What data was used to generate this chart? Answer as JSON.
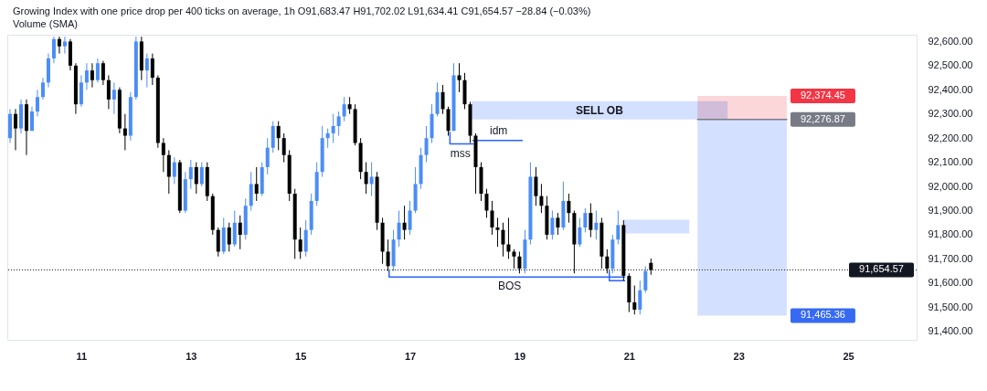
{
  "chart_data": {
    "type": "candlestick",
    "title": "Growing Index with one price drop per 400 ticks on average, 1h O91,683.47 H91,702.02 L91,634.41 C91,654.57 −28.84 (−0.03%)",
    "subtitle": "Volume (SMA)",
    "x": [
      9.7,
      9.8,
      9.9,
      10,
      10.1,
      10.2,
      10.3,
      10.4,
      10.5,
      10.6,
      10.7,
      10.8,
      10.9,
      11,
      11.1,
      11.2,
      11.3,
      11.4,
      11.5,
      11.6,
      11.7,
      11.8,
      11.9,
      12,
      12.1,
      12.2,
      12.3,
      12.4,
      12.5,
      12.6,
      12.7,
      12.8,
      12.9,
      13,
      13.1,
      13.2,
      13.3,
      13.4,
      13.5,
      13.6,
      13.7,
      13.8,
      13.9,
      14,
      14.1,
      14.2,
      14.3,
      14.4,
      14.5,
      14.6,
      14.7,
      14.8,
      14.9,
      15,
      15.1,
      15.2,
      15.3,
      15.4,
      15.5,
      15.6,
      15.7,
      15.8,
      15.9,
      16,
      16.1,
      16.2,
      16.3,
      16.4,
      16.5,
      16.6,
      16.7,
      16.8,
      16.9,
      17,
      17.1,
      17.2,
      17.3,
      17.4,
      17.5,
      17.6,
      17.7,
      17.8,
      17.9,
      18,
      18.1,
      18.2,
      18.3,
      18.4,
      18.5,
      18.6,
      18.7,
      18.8,
      18.9,
      19,
      19.1,
      19.2,
      19.3,
      19.4,
      19.5,
      19.6,
      19.7,
      19.8,
      19.9,
      20,
      20.1,
      20.2,
      20.3,
      20.4,
      20.5,
      20.6,
      20.7,
      20.8,
      20.9,
      21,
      21.1,
      21.2,
      21.3,
      21.4
    ],
    "ohlc": [
      [
        92200,
        92320,
        92180,
        92300
      ],
      [
        92300,
        92320,
        92150,
        92240
      ],
      [
        92240,
        92360,
        92220,
        92340
      ],
      [
        92340,
        92360,
        92130,
        92230
      ],
      [
        92230,
        92330,
        92230,
        92310
      ],
      [
        92310,
        92400,
        92290,
        92370
      ],
      [
        92370,
        92450,
        92360,
        92430
      ],
      [
        92430,
        92550,
        92410,
        92530
      ],
      [
        92530,
        92620,
        92510,
        92610
      ],
      [
        92610,
        92620,
        92550,
        92580
      ],
      [
        92580,
        92620,
        92550,
        92600
      ],
      [
        92600,
        92610,
        92480,
        92500
      ],
      [
        92500,
        92510,
        92300,
        92340
      ],
      [
        92340,
        92460,
        92330,
        92430
      ],
      [
        92430,
        92510,
        92400,
        92480
      ],
      [
        92480,
        92510,
        92410,
        92440
      ],
      [
        92440,
        92530,
        92430,
        92510
      ],
      [
        92510,
        92520,
        92420,
        92440
      ],
      [
        92440,
        92460,
        92320,
        92360
      ],
      [
        92360,
        92430,
        92300,
        92400
      ],
      [
        92400,
        92410,
        92220,
        92240
      ],
      [
        92240,
        92300,
        92150,
        92210
      ],
      [
        92210,
        92390,
        92190,
        92370
      ],
      [
        92370,
        92620,
        92360,
        92600
      ],
      [
        92600,
        92620,
        92440,
        92480
      ],
      [
        92480,
        92550,
        92410,
        92530
      ],
      [
        92530,
        92550,
        92420,
        92450
      ],
      [
        92450,
        92460,
        92160,
        92180
      ],
      [
        92180,
        92200,
        92060,
        92130
      ],
      [
        92130,
        92150,
        91970,
        92040
      ],
      [
        92040,
        92120,
        92010,
        92100
      ],
      [
        92100,
        92110,
        91890,
        91900
      ],
      [
        91900,
        92060,
        91890,
        92030
      ],
      [
        92030,
        92110,
        91990,
        92080
      ],
      [
        92080,
        92100,
        91970,
        92010
      ],
      [
        92010,
        92100,
        92000,
        92080
      ],
      [
        92080,
        92100,
        91940,
        91960
      ],
      [
        91960,
        91970,
        91800,
        91820
      ],
      [
        91820,
        91830,
        91710,
        91730
      ],
      [
        91730,
        91870,
        91720,
        91830
      ],
      [
        91830,
        91850,
        91730,
        91760
      ],
      [
        91760,
        91900,
        91750,
        91850
      ],
      [
        91850,
        91880,
        91740,
        91800
      ],
      [
        91800,
        91950,
        91780,
        91920
      ],
      [
        91920,
        92060,
        91900,
        92010
      ],
      [
        92010,
        92080,
        91940,
        91970
      ],
      [
        91970,
        92100,
        91960,
        92080
      ],
      [
        92080,
        92200,
        92050,
        92160
      ],
      [
        92160,
        92270,
        92140,
        92250
      ],
      [
        92250,
        92270,
        92150,
        92200
      ],
      [
        92200,
        92220,
        92100,
        92130
      ],
      [
        92130,
        92150,
        91940,
        91970
      ],
      [
        91970,
        91990,
        91700,
        91780
      ],
      [
        91780,
        91830,
        91700,
        91730
      ],
      [
        91730,
        91860,
        91710,
        91820
      ],
      [
        91820,
        91970,
        91800,
        91940
      ],
      [
        91940,
        92100,
        91920,
        92060
      ],
      [
        92060,
        92250,
        92040,
        92200
      ],
      [
        92200,
        92240,
        92160,
        92220
      ],
      [
        92220,
        92300,
        92180,
        92250
      ],
      [
        92250,
        92310,
        92210,
        92290
      ],
      [
        92290,
        92370,
        92270,
        92340
      ],
      [
        92340,
        92370,
        92300,
        92320
      ],
      [
        92320,
        92340,
        92170,
        92180
      ],
      [
        92180,
        92200,
        92030,
        92060
      ],
      [
        92060,
        92100,
        91970,
        92010
      ],
      [
        92010,
        92100,
        91960,
        92040
      ],
      [
        92040,
        92060,
        91820,
        91850
      ],
      [
        91850,
        91870,
        91680,
        91730
      ],
      [
        91730,
        91780,
        91650,
        91670
      ],
      [
        91670,
        91820,
        91650,
        91780
      ],
      [
        91780,
        91900,
        91750,
        91850
      ],
      [
        91850,
        91920,
        91780,
        91820
      ],
      [
        91820,
        91940,
        91800,
        91900
      ],
      [
        91900,
        92080,
        91890,
        92010
      ],
      [
        92010,
        92160,
        91990,
        92130
      ],
      [
        92130,
        92250,
        92100,
        92200
      ],
      [
        92200,
        92340,
        92180,
        92300
      ],
      [
        92300,
        92430,
        92290,
        92390
      ],
      [
        92390,
        92420,
        92300,
        92320
      ],
      [
        92320,
        92330,
        92210,
        92230
      ],
      [
        92230,
        92510,
        92230,
        92460
      ],
      [
        92460,
        92510,
        92390,
        92440
      ],
      [
        92440,
        92470,
        92320,
        92340
      ],
      [
        92340,
        92350,
        92180,
        92210
      ],
      [
        92210,
        92220,
        91970,
        92080
      ],
      [
        92080,
        92100,
        91940,
        91970
      ],
      [
        91970,
        91990,
        91870,
        91900
      ],
      [
        91900,
        91940,
        91800,
        91830
      ],
      [
        91830,
        91870,
        91750,
        91820
      ],
      [
        91820,
        91850,
        91710,
        91760
      ],
      [
        91760,
        91870,
        91700,
        91730
      ],
      [
        91730,
        91740,
        91660,
        91710
      ],
      [
        91710,
        91730,
        91640,
        91660
      ],
      [
        91660,
        91820,
        91640,
        91780
      ],
      [
        91780,
        92100,
        91760,
        92040
      ],
      [
        92040,
        92080,
        91920,
        91960
      ],
      [
        91960,
        92010,
        91890,
        91920
      ],
      [
        91920,
        91960,
        91780,
        91800
      ],
      [
        91800,
        91900,
        91780,
        91870
      ],
      [
        91870,
        91890,
        91800,
        91830
      ],
      [
        91830,
        92020,
        91820,
        91940
      ],
      [
        91940,
        91970,
        91850,
        91890
      ],
      [
        91890,
        91900,
        91640,
        91760
      ],
      [
        91760,
        91870,
        91750,
        91830
      ],
      [
        91830,
        91910,
        91810,
        91890
      ],
      [
        91890,
        91930,
        91790,
        91820
      ],
      [
        91820,
        91900,
        91780,
        91850
      ],
      [
        91850,
        91870,
        91660,
        91710
      ],
      [
        91710,
        91740,
        91640,
        91660
      ],
      [
        91660,
        91800,
        91640,
        91780
      ],
      [
        91780,
        91900,
        91760,
        91840
      ],
      [
        91840,
        91860,
        91610,
        91630
      ],
      [
        91630,
        91640,
        91480,
        91520
      ],
      [
        91520,
        91590,
        91470,
        91490
      ],
      [
        91490,
        91610,
        91470,
        91570
      ],
      [
        91570,
        91670,
        91560,
        91650
      ],
      [
        91683.47,
        91702.02,
        91634.41,
        91654.57
      ]
    ],
    "colors": [
      "#4c8df6",
      "#000000",
      "#4c8df6",
      "#000000",
      "#4c8df6",
      "#4c8df6",
      "#4c8df6",
      "#4c8df6",
      "#4c8df6",
      "#000000",
      "#4c8df6",
      "#000000",
      "#000000",
      "#4c8df6",
      "#4c8df6",
      "#000000",
      "#4c8df6",
      "#000000",
      "#000000",
      "#4c8df6",
      "#000000",
      "#000000",
      "#4c8df6",
      "#4c8df6",
      "#000000",
      "#4c8df6",
      "#000000",
      "#000000",
      "#000000",
      "#000000",
      "#4c8df6",
      "#000000",
      "#4c8df6",
      "#4c8df6",
      "#000000",
      "#4c8df6",
      "#000000",
      "#000000",
      "#000000",
      "#4c8df6",
      "#000000",
      "#4c8df6",
      "#000000",
      "#4c8df6",
      "#4c8df6",
      "#000000",
      "#4c8df6",
      "#4c8df6",
      "#4c8df6",
      "#000000",
      "#000000",
      "#000000",
      "#000000",
      "#000000",
      "#4c8df6",
      "#4c8df6",
      "#4c8df6",
      "#4c8df6",
      "#4c8df6",
      "#4c8df6",
      "#4c8df6",
      "#4c8df6",
      "#000000",
      "#000000",
      "#000000",
      "#000000",
      "#4c8df6",
      "#000000",
      "#000000",
      "#000000",
      "#4c8df6",
      "#4c8df6",
      "#000000",
      "#4c8df6",
      "#4c8df6",
      "#4c8df6",
      "#4c8df6",
      "#4c8df6",
      "#4c8df6",
      "#000000",
      "#000000",
      "#4c8df6",
      "#000000",
      "#000000",
      "#000000",
      "#000000",
      "#000000",
      "#000000",
      "#000000",
      "#000000",
      "#000000",
      "#000000",
      "#000000",
      "#000000",
      "#4c8df6",
      "#4c8df6",
      "#000000",
      "#000000",
      "#000000",
      "#4c8df6",
      "#000000",
      "#4c8df6",
      "#000000",
      "#000000",
      "#4c8df6",
      "#4c8df6",
      "#000000",
      "#4c8df6",
      "#000000",
      "#000000",
      "#4c8df6",
      "#4c8df6",
      "#000000",
      "#000000",
      "#000000",
      "#4c8df6",
      "#4c8df6",
      "#000000"
    ],
    "series": [
      {
        "type": "line",
        "color": "#d4e0ff",
        "x": [
          18.12,
          22.8
        ],
        "values": [
          null,
          null
        ],
        "lower": [
          92276.87,
          92276.87
        ],
        "upper": [
          92353,
          92353
        ]
      },
      {
        "type": "line",
        "color": "#d4e0ff",
        "x": [
          20.9,
          22.1
        ],
        "values": [
          null,
          null
        ],
        "lower": [
          91806,
          91806
        ],
        "upper": [
          91862,
          91862
        ]
      },
      {
        "type": "line",
        "color": "#fcd7da",
        "x": [
          22.25,
          23.88
        ],
        "values": [
          null,
          null
        ],
        "lower": [
          92276.87,
          92276.87
        ],
        "upper": [
          92374.45,
          92374.45
        ]
      },
      {
        "type": "line",
        "color": "#d4e0ff",
        "x": [
          22.25,
          23.88
        ],
        "values": [
          null,
          null
        ],
        "lower": [
          91465.36,
          91465.36
        ],
        "upper": [
          92276.87,
          92276.87
        ]
      },
      {
        "type": "line",
        "color": "#787b86",
        "x": [
          22.25,
          23.88
        ],
        "values": [
          92276.87,
          92276.87
        ]
      },
      {
        "type": "line",
        "color": "#2962ff",
        "x": [
          17.73,
          17.73,
          18.15
        ],
        "values": [
          92224,
          92176,
          92176
        ]
      },
      {
        "type": "line",
        "color": "#2962ff",
        "x": [
          18.15,
          19.05
        ],
        "values": [
          92190,
          92190
        ]
      },
      {
        "type": "line",
        "color": "#2962ff",
        "x": [
          16.62,
          16.62,
          20.92
        ],
        "values": [
          91650,
          91625,
          91625
        ]
      },
      {
        "type": "line",
        "color": "#2962ff",
        "x": [
          20.64,
          20.64,
          20.92
        ],
        "values": [
          91650,
          91610,
          91610
        ]
      }
    ],
    "ref_lines": [
      {
        "axis": "y",
        "value": 91654.57,
        "label": "91,654.57",
        "color": "#131722",
        "line_style": "dotted"
      }
    ],
    "annotations": [
      {
        "text": "SELL OB",
        "x": 20.46,
        "y": 92276.87
      },
      {
        "text": "idm",
        "x": 18.62,
        "y": 92190
      },
      {
        "text": "mss",
        "x": 17.92,
        "y": 92176
      },
      {
        "text": "BOS",
        "x": 18.82,
        "y": 91625
      },
      {
        "text": "92,374.45",
        "x": 23.88,
        "y": 92374.45
      },
      {
        "text": "92,276.87",
        "x": 23.88,
        "y": 92276.87
      },
      {
        "text": "91,465.36",
        "x": 23.88,
        "y": 91465.36
      }
    ],
    "xlim": [
      9.65,
      26.25
    ],
    "xticks": [
      11,
      13,
      15,
      17,
      19,
      21,
      23,
      25
    ],
    "ylim": [
      91365,
      92628
    ],
    "yticks": [
      {
        "value": 91400,
        "label": "91,400.00"
      },
      {
        "value": 91500,
        "label": "91,500.00"
      },
      {
        "value": 91600,
        "label": "91,600.00"
      },
      {
        "value": 91700,
        "label": "91,700.00"
      },
      {
        "value": 91800,
        "label": "91,800.00"
      },
      {
        "value": 91900,
        "label": "91,900.00"
      },
      {
        "value": 92000,
        "label": "92,000.00"
      },
      {
        "value": 92100,
        "label": "92,100.00"
      },
      {
        "value": 92200,
        "label": "92,200.00"
      },
      {
        "value": 92300,
        "label": "92,300.00"
      },
      {
        "value": 92400,
        "label": "92,400.00"
      },
      {
        "value": 92500,
        "label": "92,500.00"
      },
      {
        "value": 92600,
        "label": "92,600.00"
      }
    ]
  }
}
